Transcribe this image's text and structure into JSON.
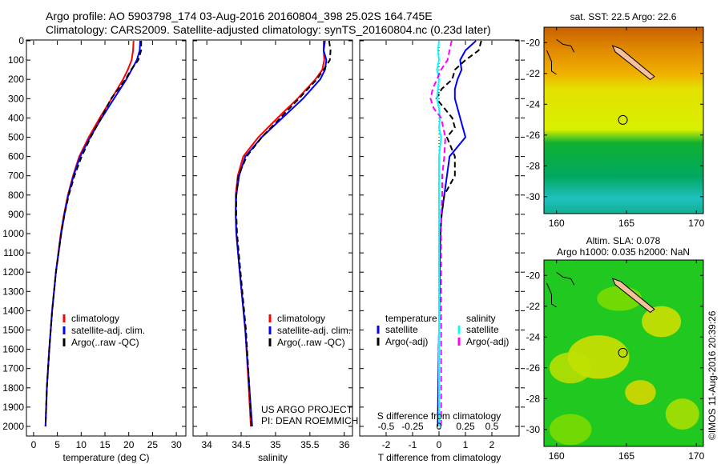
{
  "header": {
    "line1": "Argo profile: AO 5903798_174 03-Aug-2016 20160804_398 25.02S 164.745E",
    "line2": "Climatology: CARS2009. Satellite-adjusted climatology: synTS_20160804.nc (0.23d later)"
  },
  "credit": "©IMOS 11-Aug-2016 20:39:26",
  "project": [
    "US ARGO PROJECT",
    "PI: DEAN ROEMMICH"
  ],
  "colors": {
    "climatology": "#ff0000",
    "satellite": "#0000ff",
    "argo": "#000000",
    "s_satellite": "#00ffff",
    "s_argo": "#ff00ff"
  },
  "chart_data": [
    {
      "type": "line",
      "xlabel": "temperature (deg C)",
      "ylabel": "depth",
      "xlim": [
        -1.5,
        32
      ],
      "ylim": [
        2050,
        0
      ],
      "xticks": [
        0,
        5,
        10,
        15,
        20,
        25,
        30
      ],
      "yticks": [
        0,
        100,
        200,
        300,
        400,
        500,
        600,
        700,
        800,
        900,
        1000,
        1100,
        1200,
        1300,
        1400,
        1500,
        1600,
        1700,
        1800,
        1900,
        2000
      ],
      "legend": [
        "climatology",
        "satellite-adj. clim.",
        "Argo(..raw -QC)"
      ],
      "depth": [
        0,
        50,
        100,
        150,
        200,
        300,
        400,
        500,
        600,
        700,
        800,
        900,
        1000,
        1200,
        1400,
        1600,
        1800,
        2000
      ],
      "series": [
        {
          "name": "climatology",
          "values": [
            21.0,
            20.9,
            20.6,
            19.8,
            18.8,
            16.4,
            13.9,
            11.6,
            9.6,
            8.3,
            7.2,
            6.4,
            5.7,
            4.7,
            3.9,
            3.3,
            2.8,
            2.5
          ]
        },
        {
          "name": "satellite-adj. clim.",
          "values": [
            22.4,
            22.3,
            21.7,
            20.6,
            19.5,
            16.9,
            14.3,
            11.9,
            9.8,
            8.4,
            7.3,
            6.5,
            5.8,
            4.7,
            3.9,
            3.3,
            2.8,
            2.5
          ]
        },
        {
          "name": "Argo(..raw -QC)",
          "values": [
            22.6,
            22.6,
            22.0,
            20.5,
            19.3,
            16.3,
            14.2,
            12.0,
            10.1,
            8.6,
            7.4,
            6.5,
            5.8,
            4.7,
            3.9,
            3.3,
            2.8,
            2.5
          ]
        }
      ]
    },
    {
      "type": "line",
      "xlabel": "salinity",
      "xlim": [
        33.8,
        36.12
      ],
      "ylim": [
        2050,
        0
      ],
      "xticks": [
        34,
        34.5,
        35,
        35.5,
        36
      ],
      "legend": [
        "climatology",
        "satellite-adj. clim.",
        "Argo(..raw -QC)"
      ],
      "depth": [
        0,
        50,
        100,
        150,
        200,
        300,
        400,
        500,
        600,
        700,
        800,
        900,
        1000,
        1200,
        1500,
        1800,
        2000
      ],
      "series": [
        {
          "name": "climatology",
          "values": [
            35.7,
            35.7,
            35.71,
            35.68,
            35.58,
            35.32,
            35.03,
            34.75,
            34.53,
            34.45,
            34.42,
            34.42,
            34.43,
            34.48,
            34.56,
            34.61,
            34.64
          ]
        },
        {
          "name": "satellite-adj. clim.",
          "values": [
            35.72,
            35.7,
            35.74,
            35.72,
            35.65,
            35.4,
            35.1,
            34.8,
            34.56,
            34.47,
            34.43,
            34.42,
            34.43,
            34.48,
            34.56,
            34.62,
            34.66
          ]
        },
        {
          "name": "Argo(..raw -QC)",
          "values": [
            35.78,
            35.8,
            35.79,
            35.7,
            35.6,
            35.34,
            35.07,
            34.8,
            34.58,
            34.46,
            34.43,
            34.43,
            34.44,
            34.49,
            34.57,
            34.62,
            34.65
          ]
        }
      ]
    },
    {
      "type": "line",
      "xlabel": "T difference from climatology",
      "x2label": "S difference from climatology",
      "xlim": [
        -3,
        3.03
      ],
      "ylim": [
        2050,
        0
      ],
      "xticks": [
        -2,
        -1,
        0,
        1,
        2
      ],
      "x2ticks": [
        -0.5,
        -0.25,
        0,
        0.25,
        0.5
      ],
      "x2ticklabels": [
        "-0.5",
        "-0.25",
        "0",
        "0.25",
        "0.5"
      ],
      "legend_headers": [
        "temperature",
        "salinity"
      ],
      "legend": [
        "satellite",
        "Argo(-adj)",
        "satellite",
        "Argo(-adj)"
      ],
      "depth": [
        0,
        50,
        100,
        150,
        200,
        250,
        300,
        350,
        400,
        450,
        500,
        600,
        700,
        800,
        900,
        1000,
        1200,
        1500,
        2000
      ],
      "series": [
        {
          "name": "T satellite",
          "axis": "T",
          "values": [
            1.4,
            1.0,
            0.8,
            0.85,
            0.7,
            0.6,
            0.6,
            0.7,
            0.8,
            0.9,
            1.0,
            0.4,
            0.3,
            0.2,
            0.1,
            0.05,
            0.02,
            0.0,
            -0.05
          ]
        },
        {
          "name": "T Argo(-adj)",
          "axis": "T",
          "values": [
            1.6,
            1.5,
            1.0,
            0.6,
            0.5,
            0.1,
            -0.1,
            0.2,
            0.5,
            0.6,
            0.3,
            0.6,
            0.6,
            0.2,
            0.1,
            0.05,
            0.02,
            0.0,
            -0.03
          ]
        },
        {
          "name": "S satellite",
          "axis": "S",
          "values": [
            0.0,
            -0.01,
            0.0,
            -0.02,
            0.0,
            -0.01,
            -0.02,
            0.0,
            0.01,
            0.0,
            0.02,
            0.0,
            0.0,
            0.0,
            0.0,
            0.0,
            0.0,
            0.0,
            0.0
          ]
        },
        {
          "name": "S Argo(-adj)",
          "axis": "S",
          "values": [
            0.12,
            0.1,
            0.08,
            0.02,
            -0.02,
            -0.06,
            -0.08,
            -0.05,
            0.02,
            0.04,
            0.06,
            0.05,
            0.03,
            0.03,
            0.02,
            0.02,
            0.02,
            0.02,
            0.02
          ]
        }
      ]
    },
    {
      "type": "heatmap",
      "title": "sat. SST: 22.5 Argo: 22.6",
      "xlim": [
        159.1,
        170.5
      ],
      "ylim": [
        -31.1,
        -19
      ],
      "xticks": [
        160,
        165,
        170
      ],
      "yticks": [
        -20,
        -22,
        -24,
        -26,
        -28,
        -30
      ],
      "argo_position": [
        164.745,
        -25.02
      ]
    },
    {
      "type": "heatmap",
      "title": "Altim. SLA: 0.078",
      "subtitle": "Argo h1000: 0.035 h2000: NaN",
      "xlim": [
        159.1,
        170.5
      ],
      "ylim": [
        -31.1,
        -19
      ],
      "xticks": [
        160,
        165,
        170
      ],
      "yticks": [
        -20,
        -22,
        -24,
        -26,
        -28,
        -30
      ],
      "argo_position": [
        164.745,
        -25.02
      ]
    }
  ]
}
